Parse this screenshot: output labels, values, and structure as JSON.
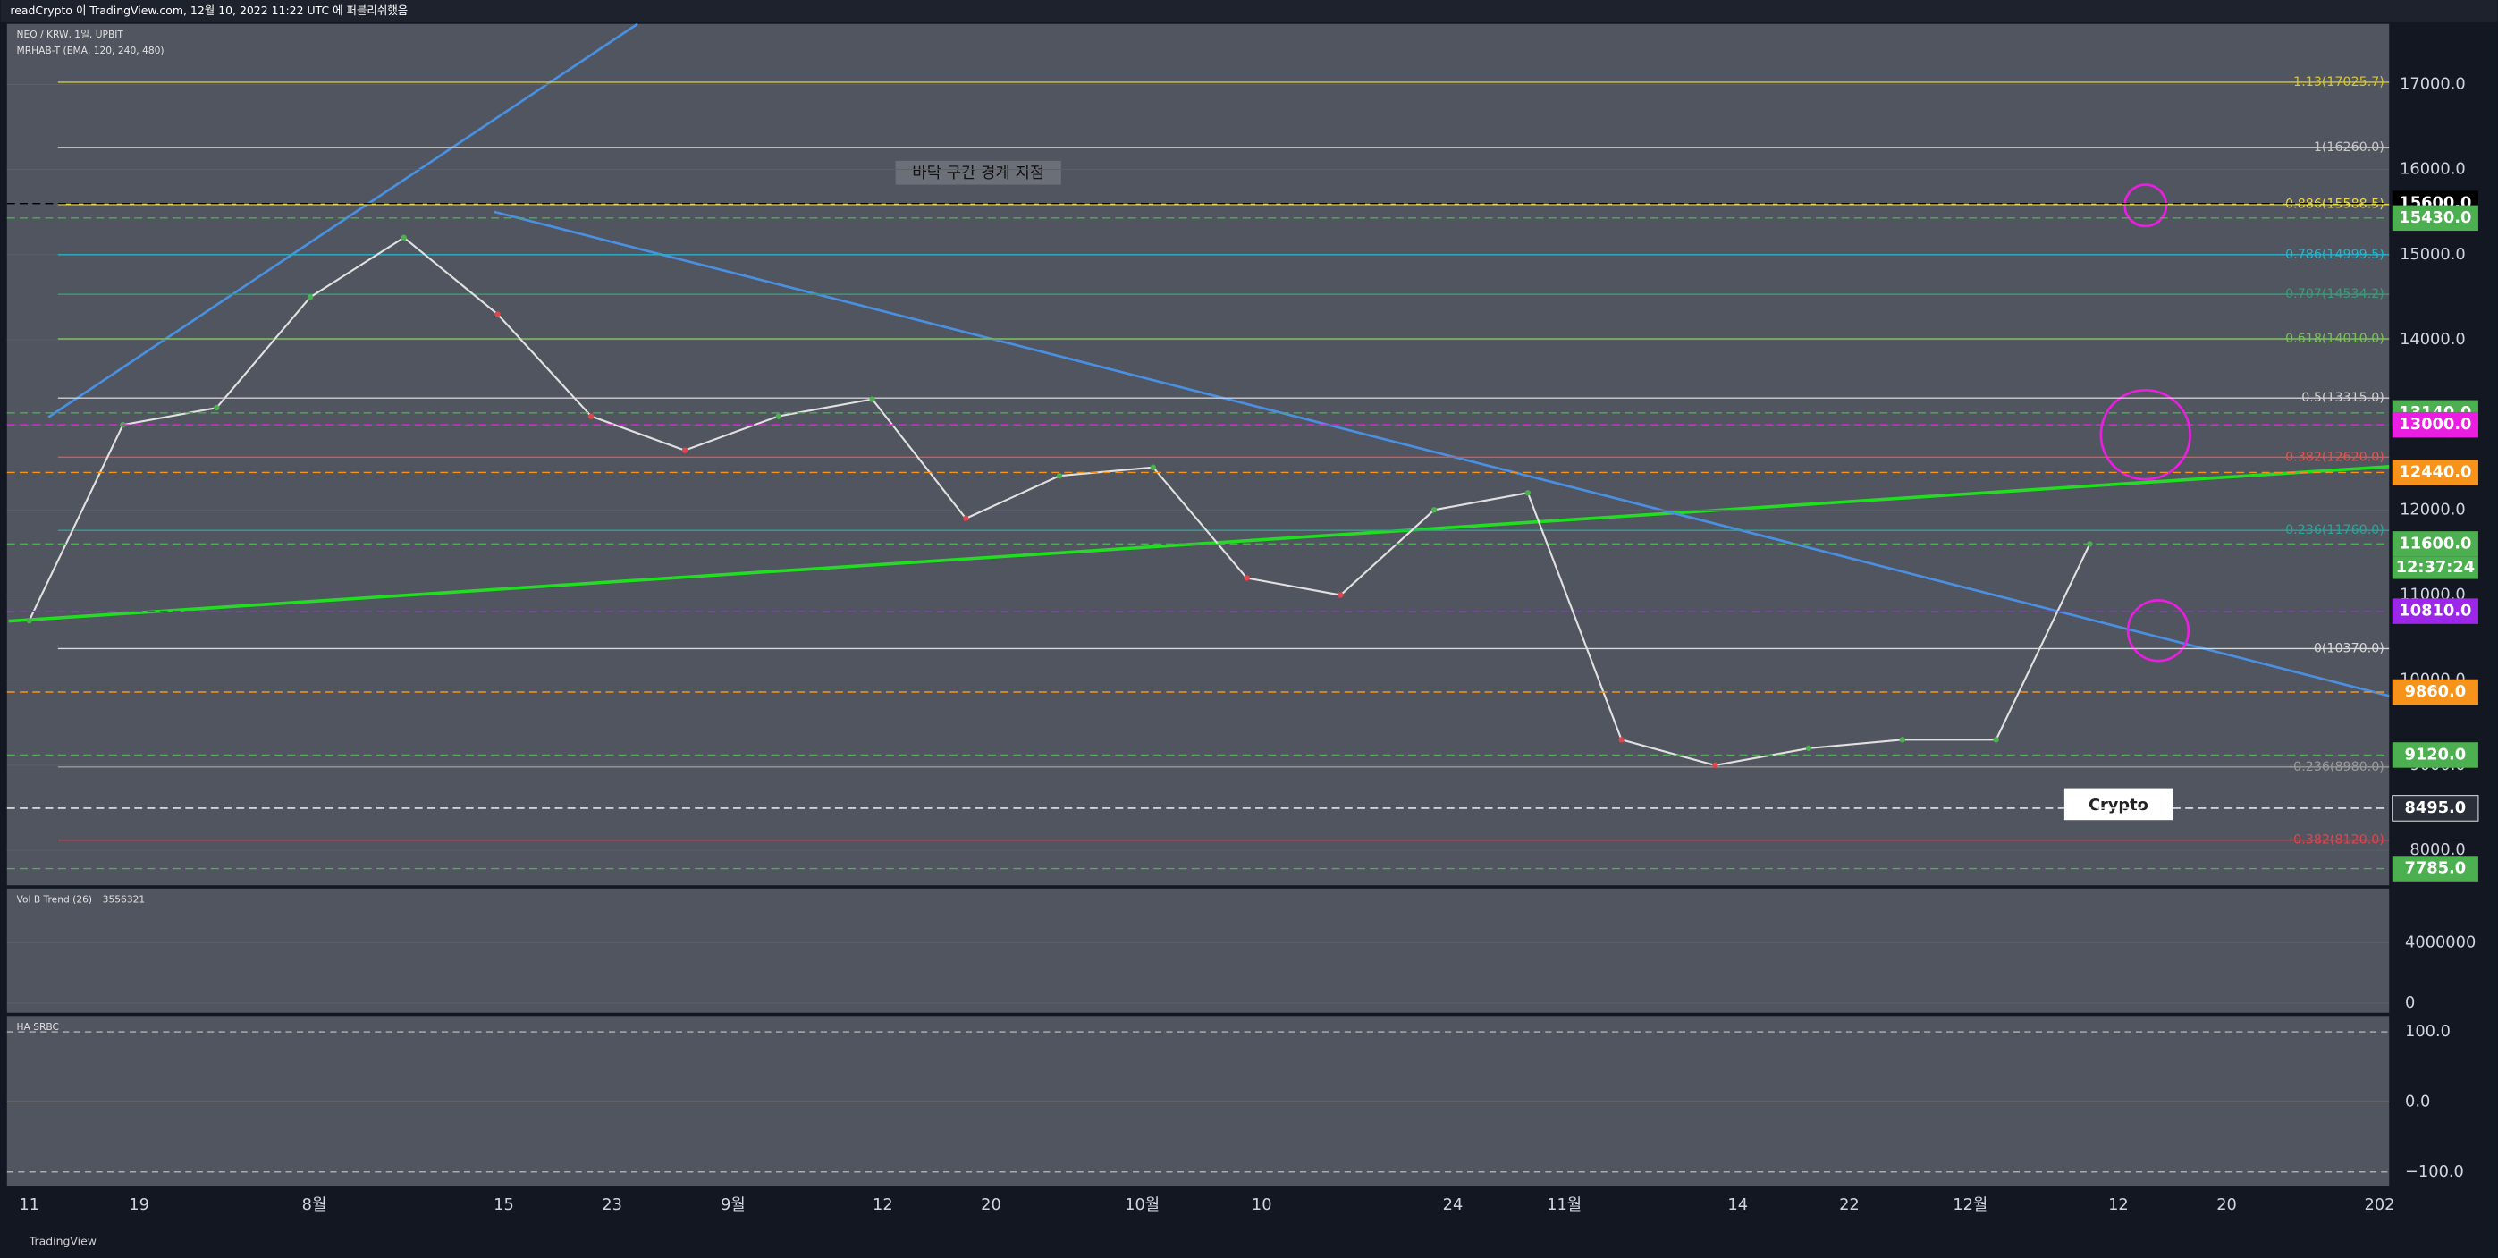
{
  "header": {
    "title": "readCrypto 이 TradingView.com, 12월 10, 2022 11:22 UTC 에 퍼블리쉬했음"
  },
  "chart": {
    "symbol_line": "NEO / KRW, 1일, UPBIT",
    "indicator_line": "MRHAB-T (EMA, 120, 240, 480)",
    "annotation": "바닥 구간 경계 지점",
    "price_ticks": [
      {
        "value": 8000,
        "label": "8000.0"
      },
      {
        "value": 9000,
        "label": "9000.0"
      },
      {
        "value": 10000,
        "label": "10000.0"
      },
      {
        "value": 11000,
        "label": "11000.0"
      },
      {
        "value": 12000,
        "label": "12000.0"
      },
      {
        "value": 13000,
        "label": "13000.0"
      },
      {
        "value": 14000,
        "label": "14000.0"
      },
      {
        "value": 15000,
        "label": "15000.0"
      },
      {
        "value": 16000,
        "label": "16000.0"
      },
      {
        "value": 17000,
        "label": "17000.0"
      }
    ],
    "fib_levels": [
      {
        "value": 17025.7,
        "label": "1.13(17025.7)",
        "color": "#d4c73a"
      },
      {
        "value": 16260.0,
        "label": "1(16260.0)",
        "color": "#c8c8c8"
      },
      {
        "value": 15588.5,
        "label": "0.886(15588.5)",
        "color": "#e8d84a"
      },
      {
        "value": 14999.5,
        "label": "0.786(14999.5)",
        "color": "#27b3c9"
      },
      {
        "value": 14534.2,
        "label": "0.707(14534.2)",
        "color": "#3a9a78"
      },
      {
        "value": 14010.0,
        "label": "0.618(14010.0)",
        "color": "#7cc05a"
      },
      {
        "value": 13315.0,
        "label": "0.5(13315.0)",
        "color": "#d0d0d0"
      },
      {
        "value": 12620.0,
        "label": "0.382(12620.0)",
        "color": "#e0554e"
      },
      {
        "value": 11760.0,
        "label": "0.236(11760.0)",
        "color": "#2aa59a"
      },
      {
        "value": 10370.0,
        "label": "0(10370.0)",
        "color": "#d8d8d8"
      },
      {
        "value": 8980.0,
        "label": "-0.236(8980.0)",
        "color": "#9a9a9a"
      },
      {
        "value": 8120.0,
        "label": "-0.382(8120.0)",
        "color": "#e0454e"
      }
    ],
    "price_badges": [
      {
        "value": 15600,
        "label": "15600.0",
        "color": "#000000"
      },
      {
        "value": 15430,
        "label": "15430.0",
        "color": "#4caf50"
      },
      {
        "value": 13140,
        "label": "13140.0",
        "color": "#4caf50"
      },
      {
        "value": 13000,
        "label": "13000.0",
        "color": "#e91ee0"
      },
      {
        "value": 12440,
        "label": "12440.0",
        "color": "#f7931a"
      },
      {
        "value": 11600,
        "label": "11600.0",
        "color": "#4caf50"
      },
      {
        "value": 10810,
        "label": "10810.0",
        "color": "#9c27e8"
      },
      {
        "value": 9860,
        "label": "9860.0",
        "color": "#f7931a"
      },
      {
        "value": 9120,
        "label": "9120.0",
        "color": "#4caf50"
      },
      {
        "value": 8495,
        "label": "8495.0",
        "color": "#2a2e39"
      },
      {
        "value": 7785,
        "label": "7785.0",
        "color": "#4caf50"
      }
    ],
    "countdown": "12:37:24",
    "closes": [
      10700,
      13000,
      13200,
      14500,
      15200,
      14300,
      13100,
      12700,
      13100,
      13300,
      11900,
      12400,
      12500,
      11200,
      11000,
      12000,
      12200,
      9300,
      9000,
      9200,
      9300,
      9300,
      11600
    ],
    "time_labels": [
      "11",
      "19",
      "8월",
      "15",
      "23",
      "9월",
      "12",
      "20",
      "10월",
      "10",
      "24",
      "11월",
      "14",
      "22",
      "12월",
      "12",
      "20",
      "202"
    ]
  },
  "volume": {
    "label": "Vol B Trend (26)",
    "value_text": "3556321",
    "ticks": [
      0,
      4000000
    ]
  },
  "oscillator": {
    "label": "HA SRBC",
    "ticks": [
      {
        "value": 100,
        "label": "100.0"
      },
      {
        "value": 0,
        "label": "0.0"
      },
      {
        "value": -100,
        "label": "−100.0"
      }
    ]
  },
  "footer": {
    "brand": "TradingView"
  }
}
